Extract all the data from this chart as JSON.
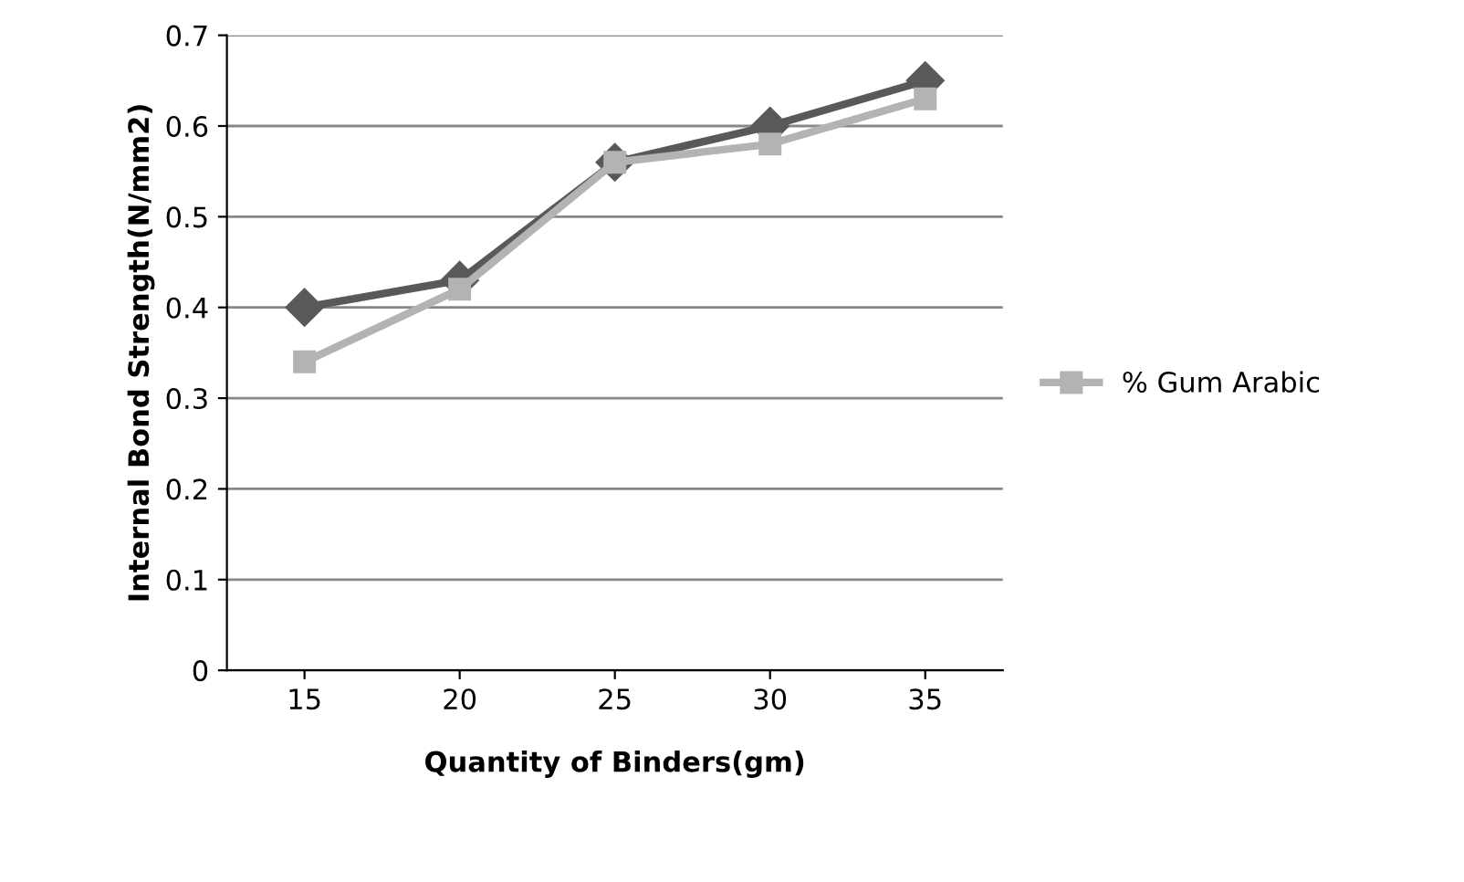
{
  "chart_data": {
    "type": "line",
    "xlabel": "Quantity of Binders(gm)",
    "ylabel": "Internal Bond Strength(N/mm2)",
    "categories": [
      "15",
      "20",
      "25",
      "30",
      "35"
    ],
    "series": [
      {
        "color": "#595959",
        "marker": "diamond",
        "values": [
          0.4,
          0.43,
          0.56,
          0.6,
          0.65
        ]
      },
      {
        "name": "% Gum Arabic",
        "color": "#b3b3b3",
        "marker": "square",
        "values": [
          0.34,
          0.42,
          0.56,
          0.58,
          0.63
        ]
      }
    ],
    "ylim": [
      0,
      0.7
    ],
    "yticks": [
      0,
      0.1,
      0.2,
      0.3,
      0.4,
      0.5,
      0.6,
      0.7
    ],
    "grid": "y",
    "legend": "right",
    "line_style": "solid"
  }
}
